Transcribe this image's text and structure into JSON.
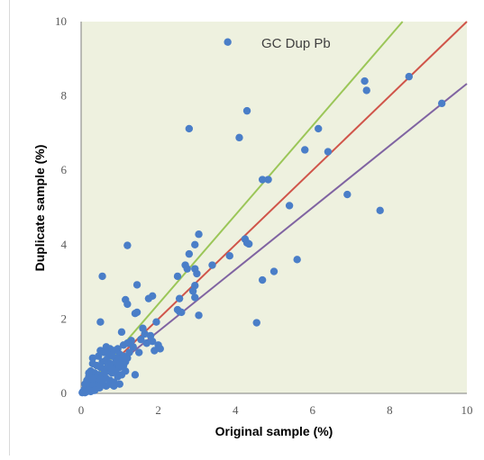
{
  "chart_data": {
    "type": "scatter",
    "title": "GC Dup Pb",
    "xlabel": "Original sample (%)",
    "ylabel": "Duplicate sample (%)",
    "xlim": [
      0,
      10
    ],
    "ylim": [
      0,
      10
    ],
    "x_ticks": [
      "0",
      "2",
      "4",
      "6",
      "8",
      "10"
    ],
    "y_ticks": [
      "0",
      "2",
      "4",
      "6",
      "8",
      "10"
    ],
    "grid": "none",
    "legend": "none",
    "colors": {
      "plot_background": "#eef1df",
      "axis": "#7f7f7f",
      "points": "#4a7ec8",
      "line_slope_1_2": "#9bc658",
      "line_slope_1": "#d0554a",
      "line_slope_0_83": "#8064a2"
    },
    "reference_lines": [
      {
        "slope": 1.2,
        "color": "#9bc658"
      },
      {
        "slope": 1.0,
        "color": "#d0554a"
      },
      {
        "slope": 0.833,
        "color": "#8064a2"
      }
    ],
    "series": [
      {
        "points": [
          [
            3.8,
            9.45
          ],
          [
            4.3,
            7.6
          ],
          [
            2.8,
            7.12
          ],
          [
            4.1,
            6.88
          ],
          [
            6.15,
            7.12
          ],
          [
            7.35,
            8.4
          ],
          [
            7.4,
            8.15
          ],
          [
            8.5,
            8.52
          ],
          [
            9.35,
            7.8
          ],
          [
            5.8,
            6.55
          ],
          [
            6.4,
            6.5
          ],
          [
            4.7,
            5.75
          ],
          [
            4.85,
            5.75
          ],
          [
            6.9,
            5.35
          ],
          [
            7.75,
            4.92
          ],
          [
            5.4,
            5.05
          ],
          [
            3.05,
            4.28
          ],
          [
            2.95,
            4.0
          ],
          [
            2.8,
            3.75
          ],
          [
            2.5,
            3.15
          ],
          [
            2.7,
            3.45
          ],
          [
            2.75,
            3.35
          ],
          [
            2.95,
            3.35
          ],
          [
            3.4,
            3.45
          ],
          [
            3.0,
            3.22
          ],
          [
            3.85,
            3.7
          ],
          [
            4.25,
            4.15
          ],
          [
            4.3,
            4.05
          ],
          [
            4.35,
            4.02
          ],
          [
            5.6,
            3.6
          ],
          [
            5.0,
            3.28
          ],
          [
            4.7,
            3.05
          ],
          [
            4.55,
            1.9
          ],
          [
            1.2,
            3.98
          ],
          [
            0.55,
            3.15
          ],
          [
            1.45,
            2.92
          ],
          [
            1.85,
            2.62
          ],
          [
            1.75,
            2.55
          ],
          [
            1.15,
            2.52
          ],
          [
            1.2,
            2.4
          ],
          [
            2.95,
            2.9
          ],
          [
            2.9,
            2.75
          ],
          [
            2.95,
            2.58
          ],
          [
            2.55,
            2.55
          ],
          [
            2.5,
            2.25
          ],
          [
            2.55,
            2.2
          ],
          [
            2.6,
            2.18
          ],
          [
            3.05,
            2.1
          ],
          [
            1.45,
            2.18
          ],
          [
            1.4,
            2.15
          ],
          [
            0.5,
            1.92
          ],
          [
            1.05,
            1.65
          ],
          [
            1.95,
            1.92
          ],
          [
            1.6,
            1.75
          ],
          [
            1.65,
            1.6
          ],
          [
            1.8,
            1.55
          ],
          [
            1.55,
            1.45
          ],
          [
            1.7,
            1.35
          ],
          [
            1.85,
            1.4
          ],
          [
            2.0,
            1.3
          ],
          [
            1.9,
            1.15
          ],
          [
            2.05,
            1.2
          ],
          [
            1.5,
            1.1
          ],
          [
            1.3,
            1.42
          ],
          [
            1.2,
            1.35
          ],
          [
            1.1,
            1.3
          ],
          [
            1.35,
            1.25
          ],
          [
            1.25,
            1.1
          ],
          [
            1.4,
            0.5
          ],
          [
            0.65,
            1.25
          ],
          [
            0.75,
            1.2
          ],
          [
            0.85,
            1.15
          ],
          [
            0.95,
            1.2
          ],
          [
            1.0,
            1.05
          ],
          [
            1.05,
            0.95
          ],
          [
            0.9,
            0.95
          ],
          [
            0.8,
            1.0
          ],
          [
            0.7,
            1.05
          ],
          [
            0.6,
            1.1
          ],
          [
            0.5,
            1.15
          ],
          [
            0.45,
            1.0
          ],
          [
            0.55,
            0.85
          ],
          [
            0.65,
            0.9
          ],
          [
            0.75,
            0.8
          ],
          [
            0.85,
            0.75
          ],
          [
            0.95,
            0.8
          ],
          [
            1.0,
            0.7
          ],
          [
            1.1,
            0.75
          ],
          [
            1.15,
            0.85
          ],
          [
            1.2,
            0.95
          ],
          [
            0.9,
            0.6
          ],
          [
            0.8,
            0.55
          ],
          [
            0.7,
            0.6
          ],
          [
            0.6,
            0.65
          ],
          [
            0.5,
            0.7
          ],
          [
            0.4,
            0.75
          ],
          [
            0.3,
            0.8
          ],
          [
            0.25,
            0.6
          ],
          [
            0.35,
            0.55
          ],
          [
            0.45,
            0.5
          ],
          [
            0.55,
            0.45
          ],
          [
            0.65,
            0.4
          ],
          [
            0.75,
            0.35
          ],
          [
            0.85,
            0.3
          ],
          [
            0.95,
            0.45
          ],
          [
            1.05,
            0.5
          ],
          [
            1.15,
            0.6
          ],
          [
            0.3,
            0.95
          ],
          [
            0.2,
            0.45
          ],
          [
            0.15,
            0.35
          ],
          [
            0.25,
            0.3
          ],
          [
            0.35,
            0.35
          ],
          [
            0.45,
            0.3
          ],
          [
            0.55,
            0.25
          ],
          [
            0.65,
            0.2
          ],
          [
            0.75,
            0.25
          ],
          [
            0.85,
            0.2
          ],
          [
            1.0,
            0.25
          ],
          [
            0.1,
            0.25
          ],
          [
            0.12,
            0.15
          ],
          [
            0.18,
            0.1
          ],
          [
            0.22,
            0.2
          ],
          [
            0.28,
            0.15
          ],
          [
            0.32,
            0.22
          ],
          [
            0.38,
            0.12
          ],
          [
            0.42,
            0.2
          ],
          [
            0.48,
            0.15
          ],
          [
            0.05,
            0.05
          ],
          [
            0.08,
            0.1
          ],
          [
            0.03,
            0.02
          ],
          [
            0.15,
            0.05
          ],
          [
            0.2,
            0.08
          ],
          [
            0.1,
            0.02
          ],
          [
            0.25,
            0.05
          ],
          [
            0.35,
            0.08
          ],
          [
            0.4,
            0.42
          ],
          [
            0.2,
            0.55
          ],
          [
            0.6,
            0.55
          ],
          [
            0.7,
            0.75
          ],
          [
            0.9,
            0.85
          ],
          [
            1.0,
            0.9
          ],
          [
            1.1,
            1.0
          ],
          [
            0.8,
            0.65
          ],
          [
            0.5,
            0.38
          ],
          [
            0.3,
            0.4
          ]
        ]
      }
    ]
  }
}
